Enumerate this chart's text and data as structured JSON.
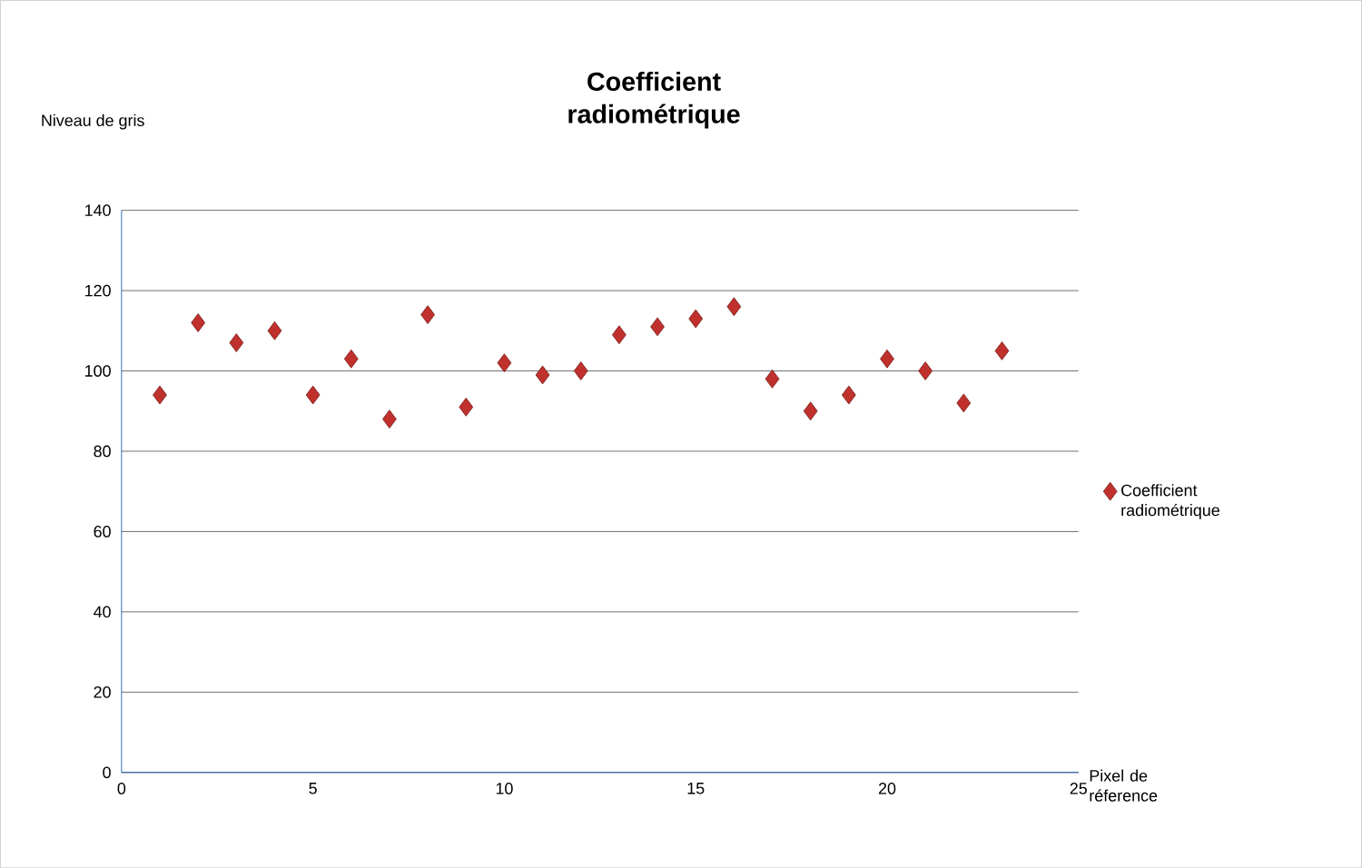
{
  "chart_data": {
    "type": "scatter",
    "title": "Coefficient radiométrique",
    "ylabel": "Niveau de gris",
    "xlabel": "Pixel de réference",
    "x": [
      1,
      2,
      3,
      4,
      5,
      6,
      7,
      8,
      9,
      10,
      11,
      12,
      13,
      14,
      15,
      16,
      17,
      18,
      19,
      20,
      21,
      22,
      23
    ],
    "series": [
      {
        "name": "Coefficient radiométrique",
        "color": "#c0302c",
        "values": [
          94,
          112,
          107,
          110,
          94,
          103,
          88,
          114,
          91,
          102,
          99,
          100,
          109,
          111,
          113,
          116,
          98,
          90,
          94,
          103,
          100,
          92,
          105
        ]
      }
    ],
    "xlim": [
      0,
      25
    ],
    "xticks": [
      0,
      5,
      10,
      15,
      20,
      25
    ],
    "ylim": [
      0,
      140
    ],
    "yticks": [
      0,
      20,
      40,
      60,
      80,
      100,
      120,
      140
    ],
    "grid": "y",
    "legend": "right",
    "marker": "diamond"
  }
}
